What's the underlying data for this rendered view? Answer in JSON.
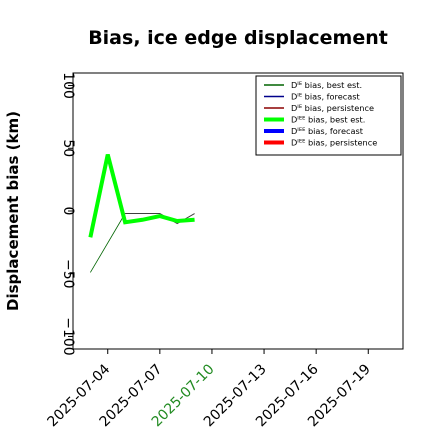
{
  "chart_data": {
    "type": "line",
    "title": "Bias, ice edge displacement",
    "xlabel": "",
    "ylabel": "Displacement bias (km)",
    "ylim": [
      -110,
      110
    ],
    "xlim": [
      "2025-07-02",
      "2025-07-21"
    ],
    "x_tick_labels": [
      "2025-07-04",
      "2025-07-07",
      "2025-07-10",
      "2025-07-13",
      "2025-07-16",
      "2025-07-19"
    ],
    "highlighted_x_tick": "2025-07-10",
    "y_tick_labels": [
      "100",
      "50",
      "0",
      "−50",
      "−100"
    ],
    "y_tick_values": [
      100,
      50,
      0,
      -50,
      -100
    ],
    "grid": false,
    "legend_position": "top-right",
    "series": [
      {
        "name": "Dᴵᴱ bias, best est.",
        "color": "#006400",
        "width": "thin",
        "x": [
          "2025-07-03",
          "2025-07-05"
        ],
        "y": [
          -49,
          -2
        ]
      },
      {
        "name": "Dᴵᴱ bias, forecast",
        "color": "#00008b",
        "width": "thin",
        "x": [],
        "y": []
      },
      {
        "name": "Dᴵᴱ bias, persistence",
        "color": "#8b0000",
        "width": "thin",
        "x": [],
        "y": []
      },
      {
        "name": "Dᴵᴱᴱ bias, best est.",
        "color": "#00ff00",
        "width": "thick",
        "x": [
          "2025-07-03",
          "2025-07-04",
          "2025-07-05",
          "2025-07-06",
          "2025-07-07",
          "2025-07-08",
          "2025-07-09"
        ],
        "y": [
          -21,
          45,
          -9,
          -7,
          -4,
          -8,
          -7
        ]
      },
      {
        "name": "Dᴵᴱᴱ bias, forecast",
        "color": "#0000ff",
        "width": "thick",
        "x": [],
        "y": []
      },
      {
        "name": "Dᴵᴱᴱ bias, persistence",
        "color": "#ff0000",
        "width": "thick",
        "x": [],
        "y": []
      }
    ],
    "reference_line": {
      "color": "#404040",
      "x": [
        "2025-07-05",
        "2025-07-06",
        "2025-07-07",
        "2025-07-08",
        "2025-07-09"
      ],
      "y": [
        -2,
        -2,
        -2,
        -10,
        -2
      ]
    },
    "tick_label_color": "#000000",
    "highlight_tick_color": "#228b22"
  }
}
